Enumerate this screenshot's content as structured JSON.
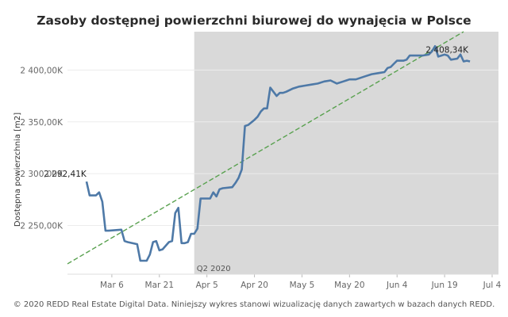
{
  "chart_data": {
    "type": "line",
    "title": "Zasoby dostępnej powierzchni biurowej do wynajęcia w Polsce",
    "ylabel": "Dostępna powierzchnia [m2]",
    "xlabel": "",
    "x_ticks": [
      "Mar 6",
      "Mar 21",
      "Apr 5",
      "Apr 20",
      "May 5",
      "May 20",
      "Jun 4",
      "Jun 19",
      "Jul 4"
    ],
    "y_ticks": [
      "2 250,00K",
      "2 300,00K",
      "2 350,00K",
      "2 400,00K"
    ],
    "ylim": [
      2203,
      2437
    ],
    "xlim": [
      "2020-02-21",
      "2020-07-06"
    ],
    "grid": true,
    "line_color": "#4e79a7",
    "trend_color": "#59a14f",
    "shaded_region": {
      "start": "2020-04-01",
      "end": "2020-07-06",
      "label": "Q2 2020",
      "color": "#d9d9d9"
    },
    "start_label": "2 292,41K",
    "end_label": "2 408,34K",
    "trend_line": {
      "start": [
        "2020-02-21",
        2213
      ],
      "end": [
        "2020-06-25",
        2437
      ]
    },
    "series": [
      {
        "x": [
          "2020-02-27",
          "2020-02-28",
          "2020-03-01",
          "2020-03-02",
          "2020-03-03",
          "2020-03-04",
          "2020-03-05",
          "2020-03-09",
          "2020-03-10",
          "2020-03-11",
          "2020-03-14",
          "2020-03-15",
          "2020-03-17",
          "2020-03-18",
          "2020-03-19",
          "2020-03-20",
          "2020-03-21",
          "2020-03-22",
          "2020-03-24",
          "2020-03-25",
          "2020-03-26",
          "2020-03-27",
          "2020-03-28",
          "2020-03-29",
          "2020-03-30",
          "2020-03-31",
          "2020-04-01",
          "2020-04-02",
          "2020-04-03",
          "2020-04-06",
          "2020-04-07",
          "2020-04-08",
          "2020-04-09",
          "2020-04-10",
          "2020-04-13",
          "2020-04-14",
          "2020-04-15",
          "2020-04-16",
          "2020-04-17",
          "2020-04-18",
          "2020-04-20",
          "2020-04-21",
          "2020-04-22",
          "2020-04-23",
          "2020-04-24",
          "2020-04-25",
          "2020-04-27",
          "2020-04-28",
          "2020-04-29",
          "2020-04-30",
          "2020-05-02",
          "2020-05-03",
          "2020-05-04",
          "2020-05-06",
          "2020-05-08",
          "2020-05-10",
          "2020-05-12",
          "2020-05-14",
          "2020-05-16",
          "2020-05-18",
          "2020-05-19",
          "2020-05-20",
          "2020-05-22",
          "2020-05-25",
          "2020-05-27",
          "2020-05-29",
          "2020-05-31",
          "2020-06-01",
          "2020-06-02",
          "2020-06-03",
          "2020-06-04",
          "2020-06-05",
          "2020-06-06",
          "2020-06-07",
          "2020-06-08",
          "2020-06-09",
          "2020-06-12",
          "2020-06-14",
          "2020-06-15",
          "2020-06-16",
          "2020-06-17",
          "2020-06-18",
          "2020-06-19",
          "2020-06-20",
          "2020-06-21",
          "2020-06-23",
          "2020-06-24",
          "2020-06-25",
          "2020-06-26",
          "2020-06-27"
        ],
        "y": [
          2292.41,
          2279,
          2279,
          2282,
          2273,
          2245,
          2245,
          2246,
          2235,
          2234,
          2232,
          2216,
          2216,
          2222,
          2234,
          2235,
          2226,
          2227,
          2234,
          2235,
          2262,
          2267,
          2233,
          2233,
          2234,
          2242,
          2242,
          2247,
          2276,
          2276,
          2282,
          2278,
          2285,
          2286,
          2287,
          2291,
          2296,
          2304,
          2346,
          2347,
          2352,
          2355,
          2360,
          2363,
          2363,
          2383,
          2375,
          2378,
          2378,
          2379,
          2382,
          2383,
          2384,
          2385,
          2386,
          2387,
          2389,
          2390,
          2387,
          2389,
          2390,
          2391,
          2391,
          2394,
          2396,
          2397,
          2398,
          2402,
          2403,
          2406,
          2409,
          2409,
          2409,
          2410,
          2414,
          2414,
          2414,
          2415,
          2418,
          2423,
          2413,
          2414,
          2415,
          2414,
          2410,
          2411,
          2415,
          2408.34,
          2409,
          2408.34
        ]
      }
    ]
  },
  "footer": "© 2020 REDD Real Estate Digital Data. Niniejszy wykres stanowi wizualizację danych zawartych w bazach danych REDD."
}
